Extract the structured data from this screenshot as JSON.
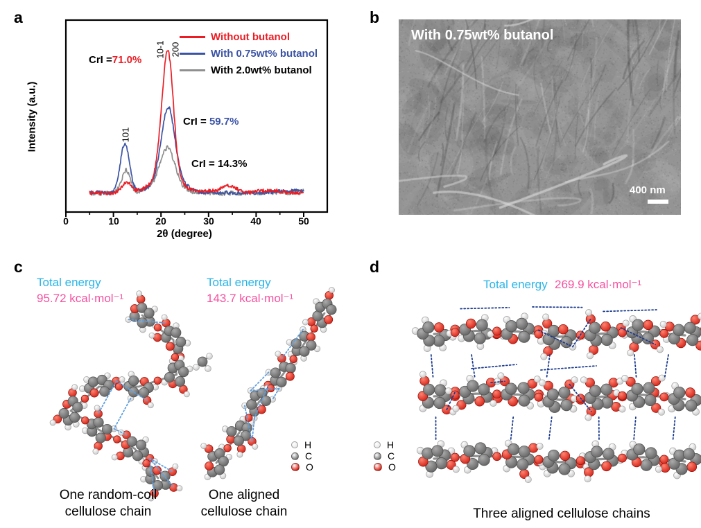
{
  "figure": {
    "panels": [
      {
        "id": "a",
        "label": "a"
      },
      {
        "id": "b",
        "label": "b"
      },
      {
        "id": "c",
        "label": "c"
      },
      {
        "id": "d",
        "label": "d"
      }
    ]
  },
  "colors": {
    "red": "#ec1c24",
    "blue": "#3a53a4",
    "gray": "#8f8f8f",
    "cyan": "#29b5e8",
    "pink": "#f6519f",
    "hbond_light": "#5e9fe0",
    "hbond_dark": "#1a3a8f",
    "atom_H": "#e9e9e9",
    "atom_C": "#787878",
    "atom_O": "#d91f12"
  },
  "chart_data": {
    "type": "line",
    "title": "",
    "xlabel": "2θ (degree)",
    "ylabel": "Intensity (a.u.)",
    "xlim": [
      0,
      55
    ],
    "ylim": "arbitrary units",
    "xticks": [
      0,
      10,
      20,
      30,
      40,
      50
    ],
    "x_minor_ticks": [
      5,
      15,
      25,
      35,
      45
    ],
    "x_data_range": [
      5,
      50
    ],
    "grid": false,
    "legend_position": "top-right",
    "series": [
      {
        "name": "Without butanol",
        "color": "#ec1c24",
        "label_color": "#ec1c24",
        "cri": "71.0%",
        "peaks": [
          {
            "center": 12.7,
            "height": 0.075,
            "width": 0.9
          },
          {
            "center": 20.7,
            "height": 0.42,
            "width": 1.05
          },
          {
            "center": 21.8,
            "height": 0.6,
            "width": 1.0
          },
          {
            "center": 21.3,
            "height": 0.17,
            "width": 2.6
          },
          {
            "center": 34.6,
            "height": 0.04,
            "width": 1.5
          }
        ],
        "noise": 0.013
      },
      {
        "name": "With 0.75wt% butanol",
        "color": "#3a53a4",
        "label_color": "#3a53a4",
        "cri": "59.7%",
        "peaks": [
          {
            "center": 12.4,
            "height": 0.37,
            "width": 0.95
          },
          {
            "center": 21.5,
            "height": 0.5,
            "width": 1.35
          },
          {
            "center": 21.4,
            "height": 0.14,
            "width": 2.8
          }
        ],
        "noise": 0.012
      },
      {
        "name": "With 2.0wt% butanol",
        "color": "#8f8f8f",
        "label_color": "#000000",
        "cri": "14.3%",
        "peaks": [
          {
            "center": 12.6,
            "height": 0.17,
            "width": 0.85
          },
          {
            "center": 21.3,
            "height": 0.26,
            "width": 1.5
          },
          {
            "center": 21.2,
            "height": 0.07,
            "width": 3.0
          }
        ],
        "noise": 0.018
      }
    ],
    "annotations": [
      {
        "prefix": "CrI =",
        "value": "71.0%",
        "value_color": "#ec1c24"
      },
      {
        "prefix": "CrI = ",
        "value": "59.7%",
        "value_color": "#3a53a4"
      },
      {
        "prefix": "CrI = ",
        "value": "14.3%",
        "value_color": "#000000"
      }
    ],
    "peak_labels": [
      "101",
      "10-1",
      "200"
    ]
  },
  "panel_b": {
    "overlay_label": "With 0.75wt% butanol",
    "scale_bar_label": "400 nm"
  },
  "panel_c": {
    "models": [
      {
        "energy_title": "Total energy",
        "energy_value": "95.72 kcal·mol⁻¹",
        "caption": [
          "One random-coil",
          "cellulose chain"
        ]
      },
      {
        "energy_title": "Total energy",
        "energy_value": "143.7 kcal·mol⁻¹",
        "caption": [
          "One aligned",
          "cellulose chain"
        ]
      }
    ],
    "legend": [
      {
        "symbol": "H"
      },
      {
        "symbol": "C"
      },
      {
        "symbol": "O"
      }
    ]
  },
  "panel_d": {
    "energy_title": "Total energy",
    "energy_value": "269.9 kcal·mol⁻¹",
    "caption": "Three aligned cellulose chains",
    "legend": [
      {
        "symbol": "H"
      },
      {
        "symbol": "C"
      },
      {
        "symbol": "O"
      }
    ]
  }
}
